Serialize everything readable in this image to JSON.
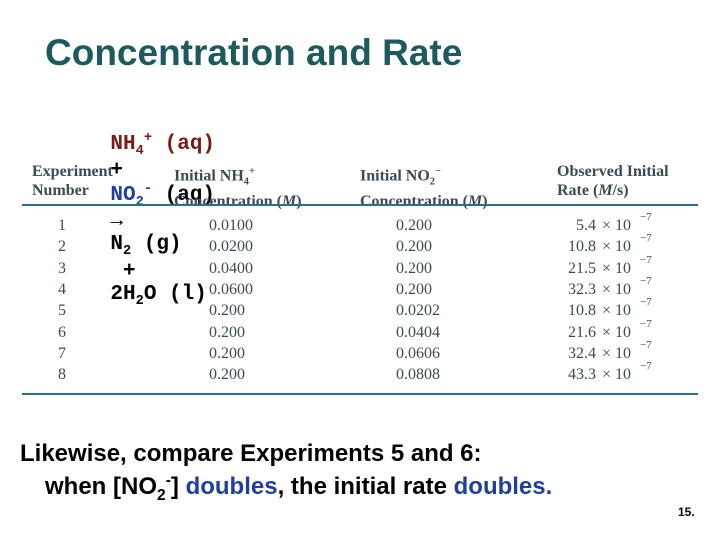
{
  "title": "Concentration and Rate",
  "equation": {
    "reactant1": {
      "base": "NH",
      "sub": "4",
      "sup": "+",
      "state": "(aq)"
    },
    "plus1": "+",
    "reactant2": {
      "base": "NO",
      "sub": "2",
      "sup": "-",
      "state": "(aq)"
    },
    "arrow": "→",
    "product1": {
      "base": "N",
      "sub": "2",
      "state": "(g)"
    },
    "plus2": "+",
    "product2": {
      "base": "2H",
      "sub": "2",
      "rest": "O (l)"
    }
  },
  "table": {
    "headers": [
      {
        "line1": "Experiment",
        "line2": "Number"
      },
      {
        "line1": "Initial NH",
        "sub": "4",
        "sup": "+",
        "line2": "Concentration (",
        "unit": "M",
        "close": ")"
      },
      {
        "line1": "Initial NO",
        "sub": "2",
        "sup": "−",
        "line2": "Concentration (",
        "unit": "M",
        "close": ")"
      },
      {
        "line1": "Observed Initial",
        "line2": "Rate (",
        "unit": "M",
        "close": "/s)"
      }
    ],
    "times": "× 10",
    "rows": [
      [
        "1",
        "0.0100",
        "0.200",
        "5.4",
        "−7"
      ],
      [
        "2",
        "0.0200",
        "0.200",
        "10.8",
        "−7"
      ],
      [
        "3",
        "0.0400",
        "0.200",
        "21.5",
        "−7"
      ],
      [
        "4",
        "0.0600",
        "0.200",
        "32.3",
        "−7"
      ],
      [
        "5",
        "0.200",
        "0.0202",
        "10.8",
        "−7"
      ],
      [
        "6",
        "0.200",
        "0.0404",
        "21.6",
        "−7"
      ],
      [
        "7",
        "0.200",
        "0.0606",
        "32.4",
        "−7"
      ],
      [
        "8",
        "0.200",
        "0.0808",
        "43.3",
        "−7"
      ]
    ]
  },
  "footer": {
    "line1": "Likewise, compare Experiments 5 and 6:",
    "line2": {
      "start": "when [NO",
      "sub": "2",
      "sup": "-",
      "close": "] ",
      "emph1": "doubles",
      "mid": ", the initial rate ",
      "emph2": "doubles."
    }
  },
  "page_number": "15."
}
